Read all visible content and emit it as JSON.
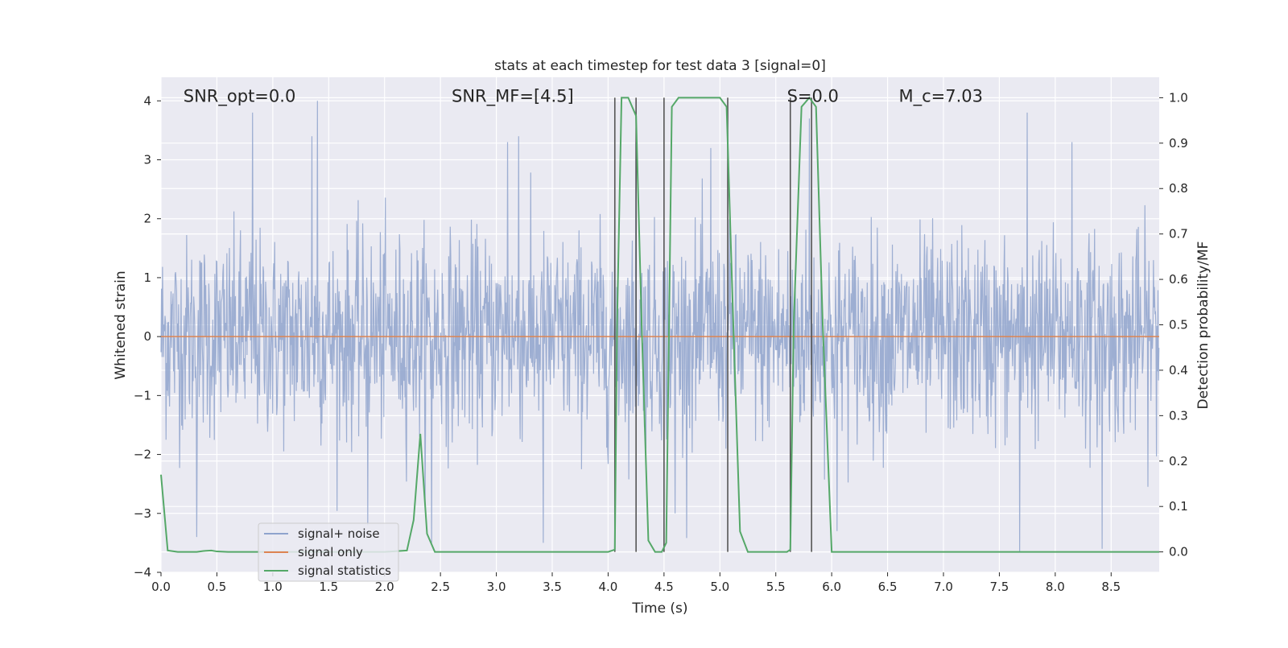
{
  "chart_data": {
    "type": "line",
    "title": "stats at each timestep for test data 3 [signal=0]",
    "xlabel": "Time (s)",
    "ylabel_left": "Whitened strain",
    "ylabel_right": "Detection probability/MF",
    "xlim": [
      0.0,
      9.0
    ],
    "ylim_left": [
      -4.0,
      4.4
    ],
    "ylim_right": [
      -0.045,
      1.045
    ],
    "x_ticks": [
      0.0,
      0.5,
      1.0,
      1.5,
      2.0,
      2.5,
      3.0,
      3.5,
      4.0,
      4.5,
      5.0,
      5.5,
      6.0,
      6.5,
      7.0,
      7.5,
      8.0,
      8.5
    ],
    "x_tick_labels": [
      "0.0",
      "0.5",
      "1.0",
      "1.5",
      "2.0",
      "2.5",
      "3.0",
      "3.5",
      "4.0",
      "4.5",
      "5.0",
      "5.5",
      "6.0",
      "6.5",
      "7.0",
      "7.5",
      "8.0",
      "8.5"
    ],
    "y_left_ticks": [
      -4,
      -3,
      -2,
      -1,
      0,
      1,
      2,
      3,
      4
    ],
    "y_left_tick_labels": [
      "−4",
      "−3",
      "−2",
      "−1",
      "0",
      "1",
      "2",
      "3",
      "4"
    ],
    "y_right_ticks": [
      0.0,
      0.1,
      0.2,
      0.3,
      0.4,
      0.5,
      0.6,
      0.7,
      0.8,
      0.9,
      1.0
    ],
    "y_right_tick_labels": [
      "0.0",
      "0.1",
      "0.2",
      "0.3",
      "0.4",
      "0.5",
      "0.6",
      "0.7",
      "0.8",
      "0.9",
      "1.0"
    ],
    "grid": true,
    "legend_position": "lower-left",
    "annotations": [
      {
        "text": "SNR_opt=0.0",
        "x": 0.2,
        "y": 4.0
      },
      {
        "text": "SNR_MF=[4.5]",
        "x": 2.6,
        "y": 4.0
      },
      {
        "text": "S=0.0",
        "x": 5.6,
        "y": 4.0
      },
      {
        "text": "M_c=7.03",
        "x": 6.6,
        "y": 4.0
      }
    ],
    "series": [
      {
        "name": "signal+ noise",
        "axis": "left",
        "color": "#8fa3cd",
        "style": "dense-noise",
        "sigma": 0.85,
        "max_abs": 4.0,
        "sample_step": 0.0045,
        "peaks": [
          {
            "x": 0.82,
            "y": 3.8
          },
          {
            "x": 1.4,
            "y": 4.0
          },
          {
            "x": 1.35,
            "y": 3.4
          },
          {
            "x": 3.2,
            "y": 3.4
          },
          {
            "x": 3.1,
            "y": 3.3
          },
          {
            "x": 4.25,
            "y": 3.3
          },
          {
            "x": 4.92,
            "y": 3.2
          },
          {
            "x": 5.8,
            "y": 3.7
          },
          {
            "x": 7.75,
            "y": 3.8
          },
          {
            "x": 8.15,
            "y": 3.3
          },
          {
            "x": 0.32,
            "y": -3.4
          },
          {
            "x": 2.42,
            "y": -3.5
          },
          {
            "x": 3.42,
            "y": -3.5
          },
          {
            "x": 7.68,
            "y": -3.65
          },
          {
            "x": 8.42,
            "y": -3.6
          },
          {
            "x": 6.05,
            "y": -3.3
          },
          {
            "x": 4.6,
            "y": -3.0
          },
          {
            "x": 1.85,
            "y": -3.2
          }
        ]
      },
      {
        "name": "signal only",
        "axis": "left",
        "color": "#dd8452",
        "x": [
          0.0,
          9.0
        ],
        "y": [
          0.0,
          0.0
        ]
      },
      {
        "name": "signal statistics",
        "axis": "right",
        "color": "#55a868",
        "x": [
          0.0,
          0.06,
          0.15,
          0.25,
          0.32,
          0.38,
          0.45,
          0.5,
          0.6,
          0.8,
          1.0,
          1.5,
          2.0,
          2.2,
          2.26,
          2.32,
          2.38,
          2.45,
          2.55,
          3.0,
          3.5,
          4.0,
          4.06,
          4.08,
          4.12,
          4.18,
          4.25,
          4.3,
          4.36,
          4.42,
          4.48,
          4.52,
          4.57,
          4.63,
          4.7,
          4.8,
          5.0,
          5.06,
          5.12,
          5.18,
          5.25,
          5.4,
          5.6,
          5.63,
          5.66,
          5.73,
          5.8,
          5.86,
          5.92,
          6.0,
          6.5,
          7.0,
          7.5,
          8.0,
          8.5,
          9.0
        ],
        "y": [
          0.17,
          0.003,
          0.0,
          0.0,
          0.0,
          0.002,
          0.003,
          0.001,
          0.0,
          0.0,
          0.0,
          0.0,
          0.0,
          0.003,
          0.07,
          0.26,
          0.04,
          0.0,
          0.0,
          0.0,
          0.0,
          0.0,
          0.005,
          0.5,
          1.0,
          1.0,
          0.96,
          0.5,
          0.025,
          0.0,
          0.0,
          0.02,
          0.98,
          1.0,
          1.0,
          1.0,
          1.0,
          0.98,
          0.5,
          0.045,
          0.0,
          0.0,
          0.0,
          0.005,
          0.5,
          0.98,
          1.0,
          0.98,
          0.5,
          0.0,
          0.0,
          0.0,
          0.0,
          0.0,
          0.0,
          0.0
        ]
      }
    ],
    "vertical_lines": {
      "color": "#555555",
      "x": [
        4.06,
        4.25,
        4.5,
        5.07,
        5.63,
        5.82
      ],
      "y_range": [
        0.0,
        1.0
      ]
    }
  },
  "legend": {
    "items": [
      {
        "label": "signal+ noise",
        "color": "#8fa3cd"
      },
      {
        "label": "signal only",
        "color": "#dd8452"
      },
      {
        "label": "signal statistics",
        "color": "#55a868"
      }
    ]
  },
  "colors": {
    "plot_background": "#eaeaf2",
    "grid": "#ffffff",
    "text": "#262626"
  }
}
